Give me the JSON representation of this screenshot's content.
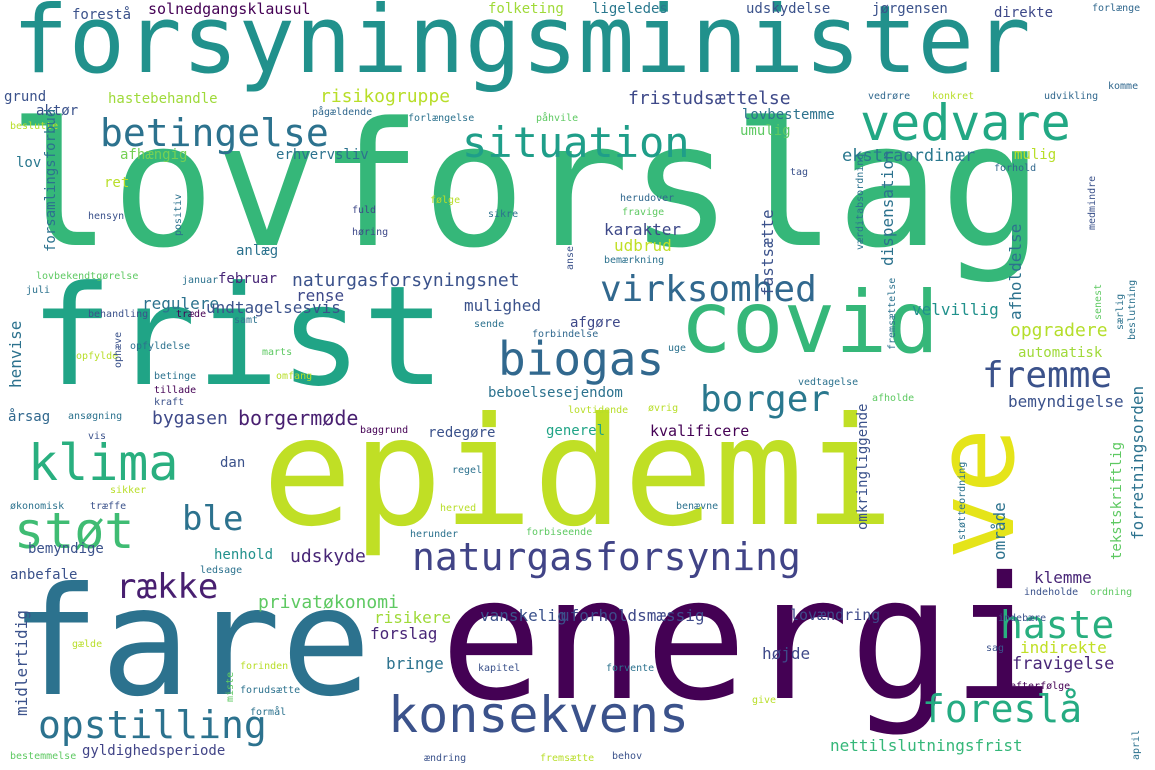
{
  "words": [
    {
      "text": "forsyningsminister",
      "color": "#21918c"
    },
    {
      "text": "lovforslag",
      "color": "#35b779"
    },
    {
      "text": "epidemi",
      "color": "#c0df25"
    },
    {
      "text": "fare",
      "color": "#2c728e"
    },
    {
      "text": "energi",
      "color": "#440154"
    },
    {
      "text": "frist",
      "color": "#20a486"
    },
    {
      "text": "covid",
      "color": "#35b779"
    },
    {
      "text": "ve",
      "color": "#e5e419"
    },
    {
      "text": "konsekvens",
      "color": "#3b528b"
    },
    {
      "text": "vedvare",
      "color": "#22a884"
    },
    {
      "text": "klima",
      "color": "#29af7f"
    },
    {
      "text": "støt",
      "color": "#3fbc73"
    },
    {
      "text": "biogas",
      "color": "#31688e"
    },
    {
      "text": "situation",
      "color": "#1f9e89"
    },
    {
      "text": "betingelse",
      "color": "#2c728e"
    },
    {
      "text": "naturgasforsyning",
      "color": "#414487"
    },
    {
      "text": "opstilling",
      "color": "#2c728e"
    },
    {
      "text": "virksomhed",
      "color": "#31688e"
    },
    {
      "text": "borger",
      "color": "#2a788e"
    },
    {
      "text": "fremme",
      "color": "#3b528b"
    },
    {
      "text": "haste",
      "color": "#29af7f"
    },
    {
      "text": "foreslå",
      "color": "#25ab82"
    },
    {
      "text": "række",
      "color": "#481f70"
    },
    {
      "text": "ble",
      "color": "#2c728e"
    },
    {
      "text": "borgermøde",
      "color": "#481f70"
    },
    {
      "text": "naturgasforsyningsnet",
      "color": "#3b528b"
    },
    {
      "text": "fristudsættelse",
      "color": "#3e4989"
    },
    {
      "text": "risikogruppe",
      "color": "#b8de29"
    },
    {
      "text": "ekstraordinær",
      "color": "#2a788e"
    },
    {
      "text": "opgradere",
      "color": "#b5de2b"
    },
    {
      "text": "bygasen",
      "color": "#3e4989"
    },
    {
      "text": "udskyde",
      "color": "#482677"
    },
    {
      "text": "privatøkonomi",
      "color": "#5ec962"
    },
    {
      "text": "karakter",
      "color": "#3e4989"
    },
    {
      "text": "udbrud",
      "color": "#c0df25"
    },
    {
      "text": "mulighed",
      "color": "#3b528b"
    },
    {
      "text": "afgøre",
      "color": "#3e4989"
    },
    {
      "text": "rense",
      "color": "#3e4989"
    },
    {
      "text": "regulere",
      "color": "#2c728e"
    },
    {
      "text": "undtagelsesvis",
      "color": "#3b528b"
    },
    {
      "text": "beboelsesejendom",
      "color": "#2c728e"
    },
    {
      "text": "generel",
      "color": "#20a486"
    },
    {
      "text": "redegøre",
      "color": "#3b528b"
    },
    {
      "text": "kvalificere",
      "color": "#440154"
    },
    {
      "text": "bemyndigelse",
      "color": "#3b528b"
    },
    {
      "text": "velvillig",
      "color": "#21918c"
    },
    {
      "text": "automatisk",
      "color": "#a0da39"
    },
    {
      "text": "klemme",
      "color": "#482677"
    },
    {
      "text": "indirekte",
      "color": "#c0df25"
    },
    {
      "text": "fravigelse",
      "color": "#482677"
    },
    {
      "text": "nettilslutningsfrist",
      "color": "#35b779"
    },
    {
      "text": "uforholdsmæssig",
      "color": "#3e4989"
    },
    {
      "text": "vanskelig",
      "color": "#3b528b"
    },
    {
      "text": "lovændring",
      "color": "#3e4989"
    },
    {
      "text": "bringe",
      "color": "#2c728e"
    },
    {
      "text": "højde",
      "color": "#3e4989"
    },
    {
      "text": "risikere",
      "color": "#9fda3a"
    },
    {
      "text": "forslag",
      "color": "#482677"
    },
    {
      "text": "gyldighedsperiode",
      "color": "#414487"
    },
    {
      "text": "anbefale",
      "color": "#3b528b"
    },
    {
      "text": "henhold",
      "color": "#21918c"
    },
    {
      "text": "bemyndige",
      "color": "#3b528b"
    },
    {
      "text": "dan",
      "color": "#3b528b"
    },
    {
      "text": "årsag",
      "color": "#31688e"
    },
    {
      "text": "februar",
      "color": "#482677"
    },
    {
      "text": "anlæg",
      "color": "#2c728e"
    },
    {
      "text": "erhvervsliv",
      "color": "#2c728e"
    },
    {
      "text": "afhængig",
      "color": "#75d054"
    },
    {
      "text": "ret",
      "color": "#b8de29"
    },
    {
      "text": "lov",
      "color": "#2a788e"
    },
    {
      "text": "aktør",
      "color": "#3b528b"
    },
    {
      "text": "grund",
      "color": "#3b528b"
    },
    {
      "text": "hastebehandle",
      "color": "#9fda3a"
    },
    {
      "text": "solnedgangsklausul",
      "color": "#440154"
    },
    {
      "text": "forestå",
      "color": "#3b528b"
    },
    {
      "text": "folketing",
      "color": "#a0da39"
    },
    {
      "text": "ligeledes",
      "color": "#2a788e"
    },
    {
      "text": "udskydelse",
      "color": "#3b528b"
    },
    {
      "text": "jørgensen",
      "color": "#3b528b"
    },
    {
      "text": "direkte",
      "color": "#3e4989"
    },
    {
      "text": "lovbestemme",
      "color": "#2c728e"
    },
    {
      "text": "umulig",
      "color": "#5ec962"
    },
    {
      "text": "mulig",
      "color": "#b8de29"
    },
    {
      "text": "forlænge",
      "color": "#31688e"
    },
    {
      "text": "udvikling",
      "color": "#31688e"
    },
    {
      "text": "komme",
      "color": "#31688e"
    },
    {
      "text": "forhold",
      "color": "#31688e"
    },
    {
      "text": "tag",
      "color": "#3b528b"
    },
    {
      "text": "herudover",
      "color": "#31688e"
    },
    {
      "text": "fravige",
      "color": "#5ec962"
    },
    {
      "text": "bemærkning",
      "color": "#2c728e"
    },
    {
      "text": "vedrøre",
      "color": "#31688e"
    },
    {
      "text": "konkret",
      "color": "#b8de29"
    },
    {
      "text": "pågældende",
      "color": "#31688e"
    },
    {
      "text": "forlængelse",
      "color": "#2c728e"
    },
    {
      "text": "påhvile",
      "color": "#5ec962"
    },
    {
      "text": "beslutte",
      "color": "#b8de29"
    },
    {
      "text": "fuld",
      "color": "#3e4989"
    },
    {
      "text": "høring",
      "color": "#3e4989"
    },
    {
      "text": "sikre",
      "color": "#2c728e"
    },
    {
      "text": "følge",
      "color": "#b8de29"
    },
    {
      "text": "hensyn",
      "color": "#3b528b"
    },
    {
      "text": "januar",
      "color": "#2c728e"
    },
    {
      "text": "lovbekendtgørelse",
      "color": "#5ec962"
    },
    {
      "text": "juli",
      "color": "#2c728e"
    },
    {
      "text": "behandling",
      "color": "#3b528b"
    },
    {
      "text": "træde",
      "color": "#440154"
    },
    {
      "text": "samt",
      "color": "#2c728e"
    },
    {
      "text": "sende",
      "color": "#2c728e"
    },
    {
      "text": "forbindelse",
      "color": "#31688e"
    },
    {
      "text": "uge",
      "color": "#2c728e"
    },
    {
      "text": "opfyldelse",
      "color": "#2c728e"
    },
    {
      "text": "marts",
      "color": "#5ec962"
    },
    {
      "text": "opfylde",
      "color": "#b8de29"
    },
    {
      "text": "betinge",
      "color": "#2c728e"
    },
    {
      "text": "tillade",
      "color": "#440154"
    },
    {
      "text": "omfang",
      "color": "#b8de29"
    },
    {
      "text": "kraft",
      "color": "#3b528b"
    },
    {
      "text": "vedtagelse",
      "color": "#2c728e"
    },
    {
      "text": "afholde",
      "color": "#5ec962"
    },
    {
      "text": "øvrig",
      "color": "#b8de29"
    },
    {
      "text": "lovtidende",
      "color": "#b8de29"
    },
    {
      "text": "ansøgning",
      "color": "#2c728e"
    },
    {
      "text": "vis",
      "color": "#3b528b"
    },
    {
      "text": "baggrund",
      "color": "#440154"
    },
    {
      "text": "regel",
      "color": "#2c728e"
    },
    {
      "text": "sikker",
      "color": "#b8de29"
    },
    {
      "text": "økonomisk",
      "color": "#2c728e"
    },
    {
      "text": "træffe",
      "color": "#3b528b"
    },
    {
      "text": "herved",
      "color": "#b8de29"
    },
    {
      "text": "herunder",
      "color": "#2c728e"
    },
    {
      "text": "forbiseende",
      "color": "#5ec962"
    },
    {
      "text": "benævne",
      "color": "#2c728e"
    },
    {
      "text": "ledsage",
      "color": "#2c728e"
    },
    {
      "text": "indebære",
      "color": "#3b528b"
    },
    {
      "text": "sag",
      "color": "#3b528b"
    },
    {
      "text": "gælde",
      "color": "#b8de29"
    },
    {
      "text": "forinden",
      "color": "#b8de29"
    },
    {
      "text": "kapitel",
      "color": "#3b528b"
    },
    {
      "text": "forvente",
      "color": "#2c728e"
    },
    {
      "text": "efterfølge",
      "color": "#440154"
    },
    {
      "text": "forudsætte",
      "color": "#2c728e"
    },
    {
      "text": "formål",
      "color": "#2c728e"
    },
    {
      "text": "give",
      "color": "#b8de29"
    },
    {
      "text": "bestemmelse",
      "color": "#5ec962"
    },
    {
      "text": "ændring",
      "color": "#3b528b"
    },
    {
      "text": "fremsætte",
      "color": "#b8de29"
    },
    {
      "text": "behov",
      "color": "#3b528b"
    },
    {
      "text": "indeholde",
      "color": "#3b528b"
    },
    {
      "text": "ordning",
      "color": "#5ec962"
    },
    {
      "text": "henvise",
      "color": "#2c728e"
    },
    {
      "text": "forsamlingsforbud",
      "color": "#2c728e"
    },
    {
      "text": "positiv",
      "color": "#2c728e"
    },
    {
      "text": "anse",
      "color": "#3b528b"
    },
    {
      "text": "fastsætte",
      "color": "#3b528b"
    },
    {
      "text": "dispensation",
      "color": "#2c728e"
    },
    {
      "text": "afholdelse",
      "color": "#2c728e"
    },
    {
      "text": "værditabsordning",
      "color": "#2c728e"
    },
    {
      "text": "medmindre",
      "color": "#3b528b"
    },
    {
      "text": "senest",
      "color": "#5ec962"
    },
    {
      "text": "særlig",
      "color": "#2c728e"
    },
    {
      "text": "beslutning",
      "color": "#2c728e"
    },
    {
      "text": "fremsættelse",
      "color": "#2c728e"
    },
    {
      "text": "ophæve",
      "color": "#3b528b"
    },
    {
      "text": "område",
      "color": "#2c728e"
    },
    {
      "text": "omkringliggende",
      "color": "#3b528b"
    },
    {
      "text": "tekstskriftlig",
      "color": "#5ec962"
    },
    {
      "text": "forretningsorden",
      "color": "#2c728e"
    },
    {
      "text": "støtteordning",
      "color": "#2c728e"
    },
    {
      "text": "midlertidig",
      "color": "#3b528b"
    },
    {
      "text": "miste",
      "color": "#5ec962"
    },
    {
      "text": "april",
      "color": "#2c728e"
    },
    {
      "text": "bekendtgørelse",
      "color": "#2c728e"
    }
  ]
}
